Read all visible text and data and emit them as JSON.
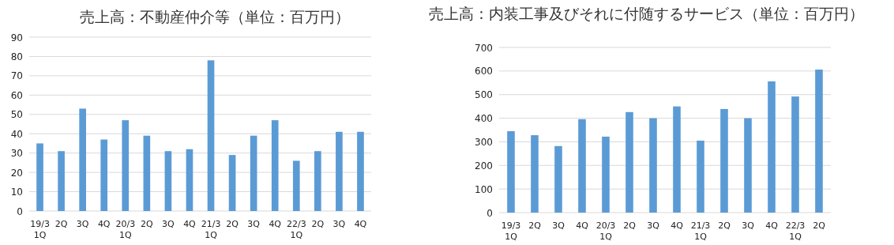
{
  "chart_data": [
    {
      "type": "bar",
      "title": "売上高：不動産仲介等（単位：百万円）",
      "categories": [
        "19/3\n1Q",
        "2Q",
        "3Q",
        "4Q",
        "20/3\n1Q",
        "2Q",
        "3Q",
        "4Q",
        "21/3\n1Q",
        "2Q",
        "3Q",
        "4Q",
        "22/3\n1Q",
        "2Q",
        "3Q",
        "4Q"
      ],
      "values": [
        35,
        31,
        53,
        37,
        47,
        39,
        31,
        32,
        78,
        29,
        39,
        47,
        26,
        31,
        41,
        41
      ],
      "color": "#5b9bd5",
      "ylim": [
        0,
        90
      ],
      "yticks": [
        0,
        10,
        20,
        30,
        40,
        50,
        60,
        70,
        80,
        90
      ],
      "grid": "y"
    },
    {
      "type": "bar",
      "title": "売上高：内装工事及びそれに付随するサービス（単位：百万円）",
      "categories": [
        "19/3\n1Q",
        "2Q",
        "3Q",
        "4Q",
        "20/3\n1Q",
        "2Q",
        "3Q",
        "4Q",
        "21/3\n1Q",
        "2Q",
        "3Q",
        "4Q",
        "22/3\n1Q",
        "2Q"
      ],
      "values": [
        345,
        328,
        282,
        396,
        322,
        426,
        400,
        450,
        305,
        439,
        400,
        556,
        492,
        606
      ],
      "color": "#5b9bd5",
      "ylim": [
        0,
        700
      ],
      "yticks": [
        0,
        100,
        200,
        300,
        400,
        500,
        600,
        700
      ],
      "grid": "y"
    }
  ]
}
